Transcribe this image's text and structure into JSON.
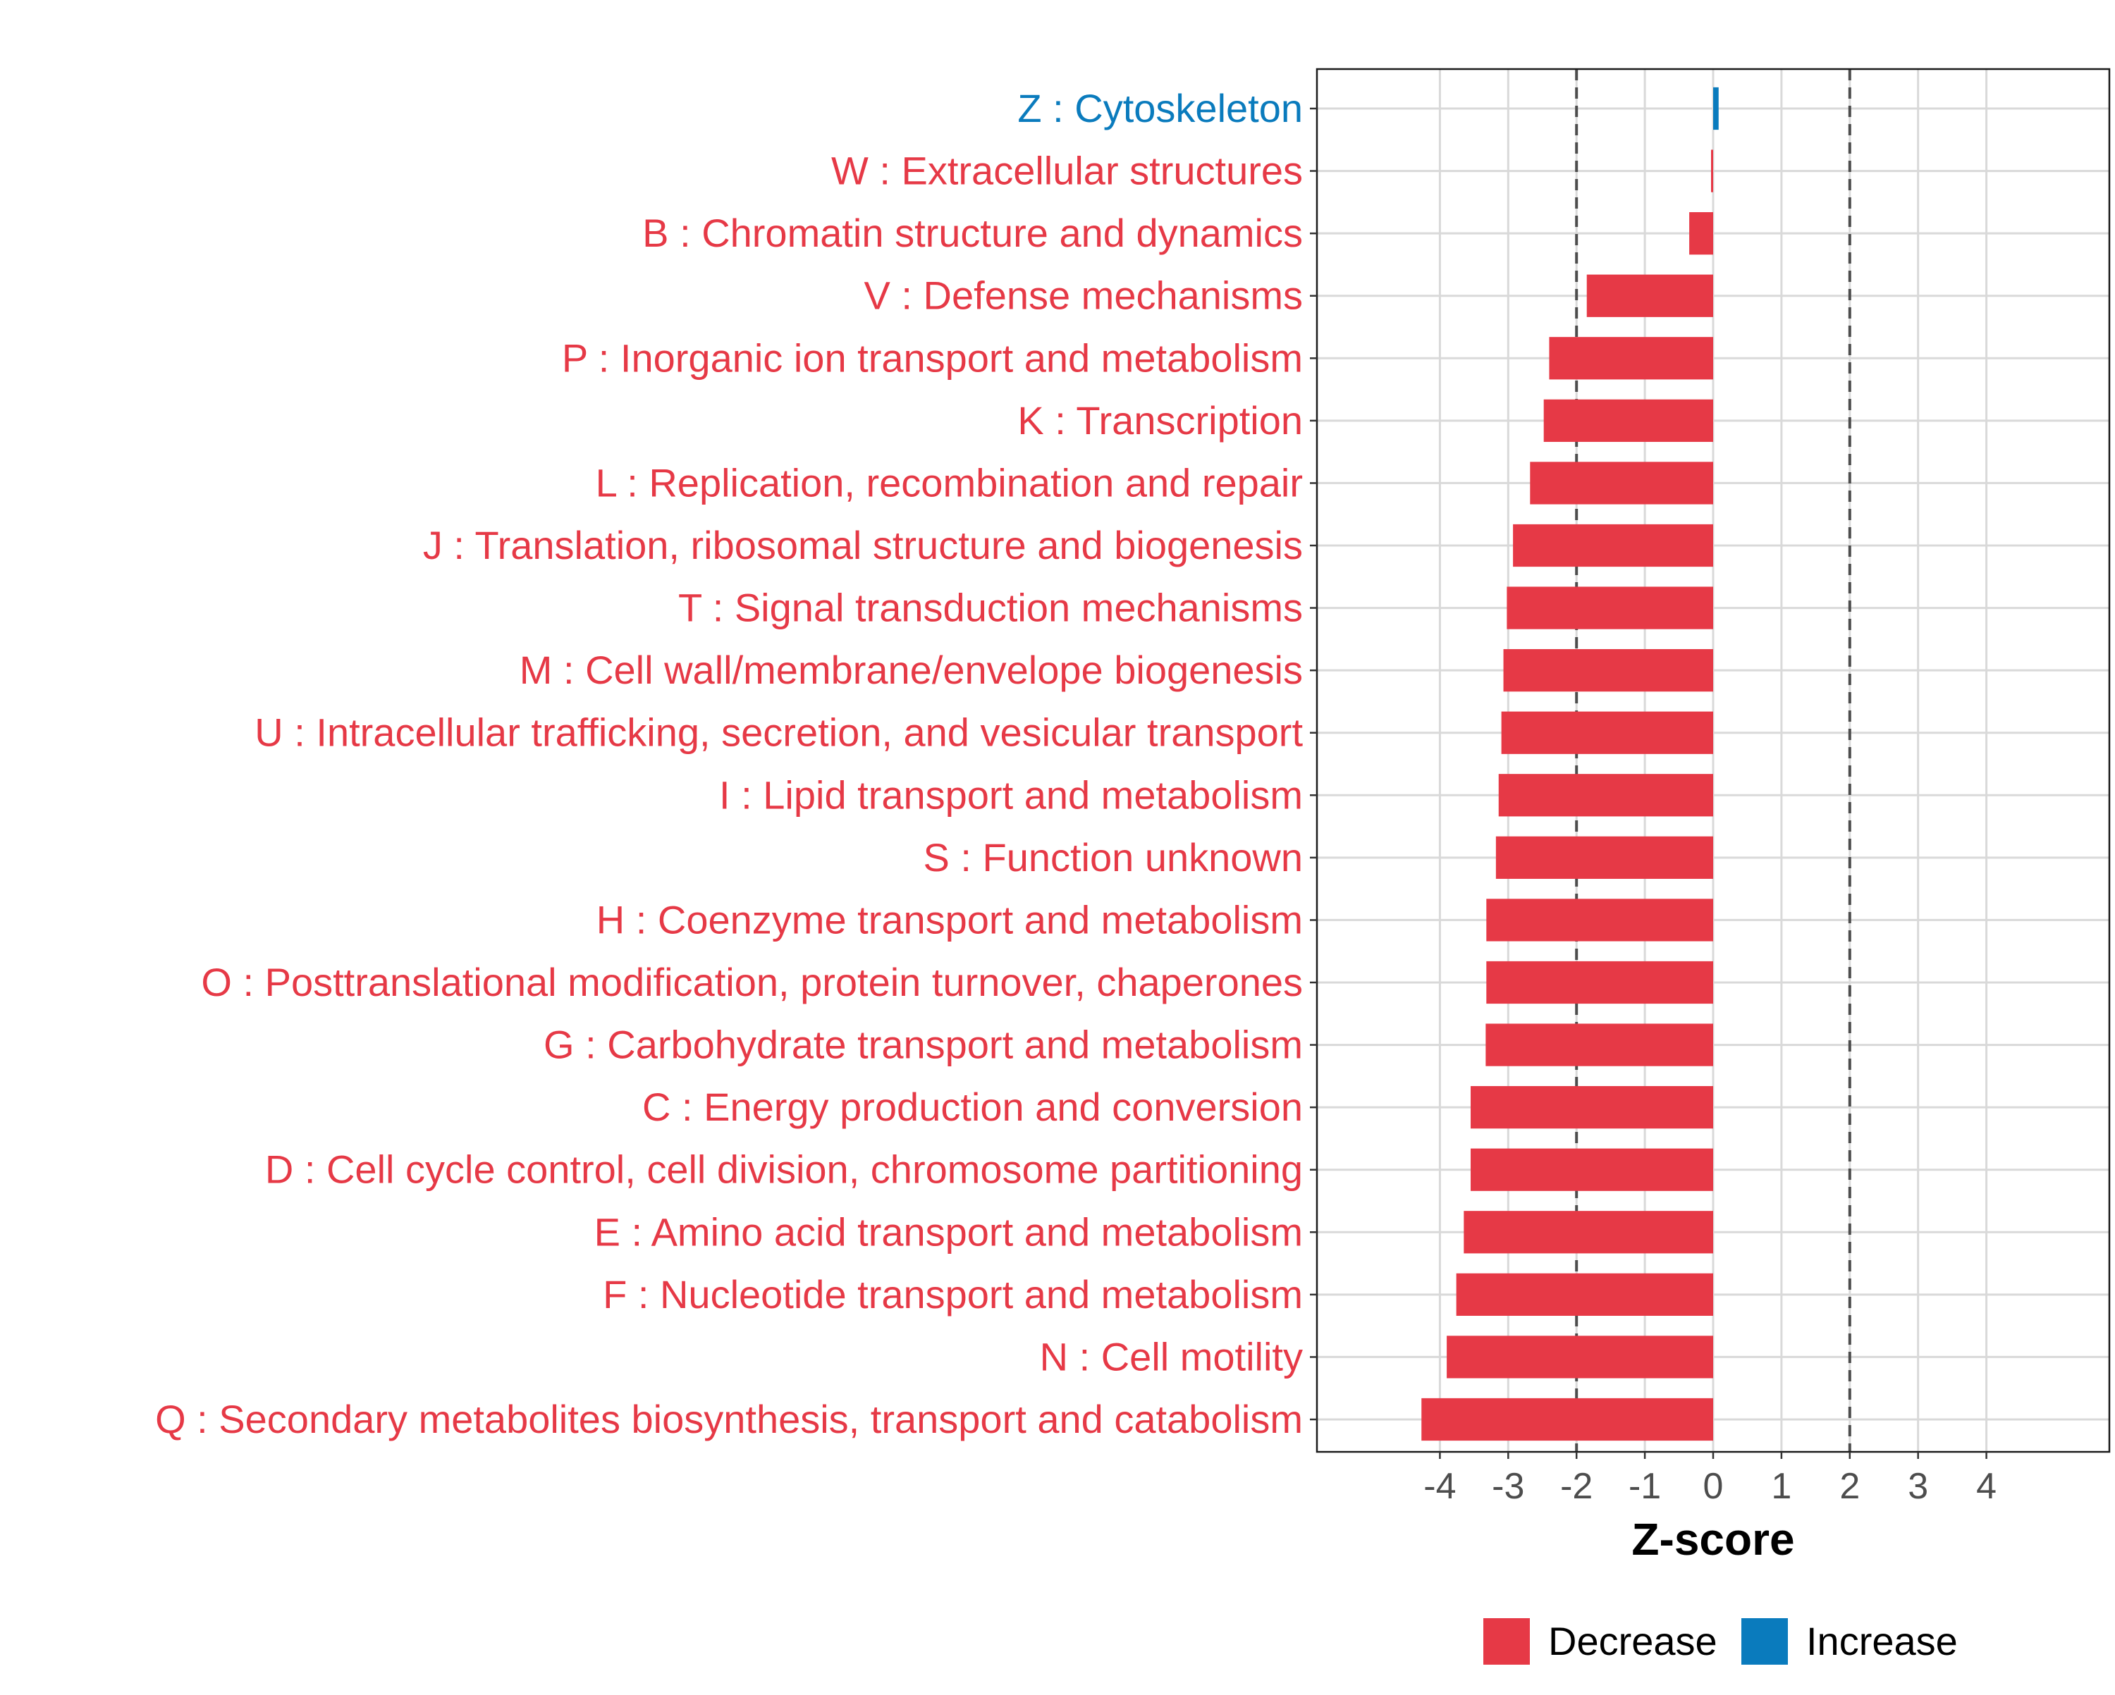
{
  "chart_data": {
    "type": "bar",
    "orientation": "horizontal",
    "xlabel": "Z-score",
    "ylabel": "",
    "xlim": [
      -5.8,
      5.8
    ],
    "xticks": [
      -4,
      -3,
      -2,
      -1,
      0,
      1,
      2,
      3,
      4
    ],
    "xtick_labels": [
      "-4",
      "-3",
      "-2",
      "-1",
      "0",
      "1",
      "2",
      "3",
      "4"
    ],
    "threshold_lines": [
      -2,
      2
    ],
    "grid": true,
    "legend_position": "bottom",
    "legend": [
      {
        "key": "Decrease",
        "label": "Decrease",
        "color": "#e63946"
      },
      {
        "key": "Increase",
        "label": "Increase",
        "color": "#0a7bbd"
      }
    ],
    "categories": [
      {
        "label": "Z : Cytoskeleton",
        "value": 0.08,
        "direction": "Increase"
      },
      {
        "label": "W : Extracellular structures",
        "value": -0.02,
        "direction": "Decrease"
      },
      {
        "label": "B : Chromatin structure and dynamics",
        "value": -0.35,
        "direction": "Decrease"
      },
      {
        "label": "V : Defense mechanisms",
        "value": -1.85,
        "direction": "Decrease"
      },
      {
        "label": "P : Inorganic ion transport and metabolism",
        "value": -2.4,
        "direction": "Decrease"
      },
      {
        "label": "K : Transcription",
        "value": -2.48,
        "direction": "Decrease"
      },
      {
        "label": "L : Replication, recombination and repair",
        "value": -2.68,
        "direction": "Decrease"
      },
      {
        "label": "J : Translation, ribosomal structure and biogenesis",
        "value": -2.93,
        "direction": "Decrease"
      },
      {
        "label": "T : Signal transduction mechanisms",
        "value": -3.02,
        "direction": "Decrease"
      },
      {
        "label": "M : Cell wall/membrane/envelope biogenesis",
        "value": -3.07,
        "direction": "Decrease"
      },
      {
        "label": "U : Intracellular trafficking, secretion, and vesicular transport",
        "value": -3.1,
        "direction": "Decrease"
      },
      {
        "label": "I : Lipid transport and metabolism",
        "value": -3.14,
        "direction": "Decrease"
      },
      {
        "label": "S : Function unknown",
        "value": -3.18,
        "direction": "Decrease"
      },
      {
        "label": "H : Coenzyme transport and metabolism",
        "value": -3.32,
        "direction": "Decrease"
      },
      {
        "label": "O : Posttranslational modification, protein turnover, chaperones",
        "value": -3.32,
        "direction": "Decrease"
      },
      {
        "label": "G : Carbohydrate transport and metabolism",
        "value": -3.33,
        "direction": "Decrease"
      },
      {
        "label": "C : Energy production and conversion",
        "value": -3.55,
        "direction": "Decrease"
      },
      {
        "label": "D : Cell cycle control, cell division, chromosome partitioning",
        "value": -3.55,
        "direction": "Decrease"
      },
      {
        "label": "E : Amino acid transport and metabolism",
        "value": -3.65,
        "direction": "Decrease"
      },
      {
        "label": "F : Nucleotide transport and metabolism",
        "value": -3.76,
        "direction": "Decrease"
      },
      {
        "label": "N : Cell motility",
        "value": -3.9,
        "direction": "Decrease"
      },
      {
        "label": "Q : Secondary metabolites biosynthesis, transport and catabolism",
        "value": -4.27,
        "direction": "Decrease"
      }
    ]
  }
}
